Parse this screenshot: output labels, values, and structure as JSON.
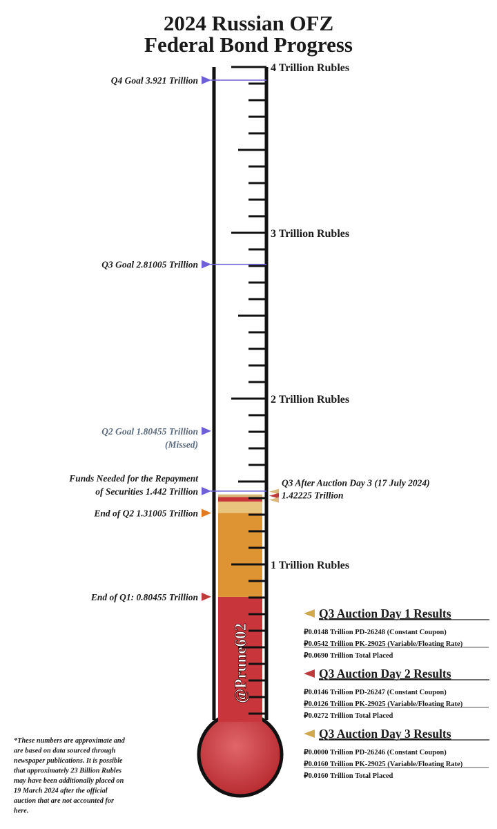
{
  "title_lines": [
    "2024 Russian OFZ",
    "Federal Bond Progress"
  ],
  "scale": {
    "ylim": [
      0,
      4
    ],
    "ticks": [
      {
        "value": 1,
        "label": "1 Trillion Rubles"
      },
      {
        "value": 2,
        "label": "2 Trillion Rubles"
      },
      {
        "value": 3,
        "label": "3 Trillion Rubles"
      },
      {
        "value": 4,
        "label": "4 Trillion Rubles"
      }
    ],
    "minor_step": 0.1
  },
  "fill": {
    "values": [
      0.80455,
      0.5055,
      0.069,
      0.0272,
      0.016
    ],
    "colors": [
      "#c8353a",
      "#df9433",
      "#e9c47e",
      "#c8353a",
      "#d9b879"
    ]
  },
  "annotations": [
    {
      "lines": [
        "Q4 Goal 3.921 Trillion"
      ],
      "value": 3.921,
      "color": "#6e5fd6",
      "text_color": "#1a1a1a",
      "line": true
    },
    {
      "lines": [
        "Q3 Goal 2.81005 Trillion"
      ],
      "value": 2.81005,
      "color": "#6e5fd6",
      "text_color": "#1a1a1a",
      "line": true
    },
    {
      "lines": [
        "Q2 Goal 1.80455 Trillion",
        "(Missed)"
      ],
      "value": 1.80455,
      "color": "#6e5fd6",
      "text_color": "#5b6b7d",
      "line": false
    },
    {
      "lines": [
        "Funds Needed for the Repayment",
        "of Securities 1.442 Trillion"
      ],
      "value": 1.442,
      "color": "#6e5fd6",
      "text_color": "#1a1a1a",
      "line": true
    },
    {
      "lines": [
        "End of Q2 1.31005 Trillion"
      ],
      "value": 1.31005,
      "color": "#e07a1f",
      "text_color": "#1a1a1a",
      "line": false
    },
    {
      "lines": [
        "End of Q1: 0.80455 Trillion"
      ],
      "value": 0.80455,
      "color": "#c0393b",
      "text_color": "#1a1a1a",
      "line": false
    }
  ],
  "current": {
    "lines": [
      "Q3 After Auction Day 3 (17 July 2024)",
      "1.42225 Trillion"
    ],
    "value": 1.42225,
    "colors": [
      "#d9b879",
      "#c0393b",
      "#d9b879"
    ]
  },
  "results": [
    {
      "title": "Q3 Auction Day 1 Results",
      "color": "#d2a84e",
      "lines": [
        "₽0.0148 Trillion PD-26248 (Constant Coupon)",
        "₽0.0542 Trillion PK-29025 (Variable/Floating Rate)",
        "₽0.0690 Trillion Total Placed"
      ]
    },
    {
      "title": "Q3 Auction Day 2 Results",
      "color": "#c0393b",
      "lines": [
        "₽0.0146 Trillion PD-26247 (Constant Coupon)",
        "₽0.0126 Trillion PK-29025 (Variable/Floating Rate)",
        "₽0.0272 Trillion Total Placed"
      ]
    },
    {
      "title": "Q3 Auction Day 3 Results",
      "color": "#d2a84e",
      "lines": [
        "₽0.0000 Trillion PD-26246 (Constant Coupon)",
        "₽0.0160 Trillion PK-29025 (Variable/Floating Rate)",
        "₽0.0160 Trillion Total Placed"
      ]
    }
  ],
  "watermark": "@Prune602",
  "note": [
    "*These numbers are approximate and",
    "are based on data sourced through",
    "newspaper publications. It is possible",
    "that approximately 23 Billion Rubles",
    "may have been additionally placed on",
    "19 March 2024 after the official",
    "auction that are not accounted for",
    "here."
  ]
}
